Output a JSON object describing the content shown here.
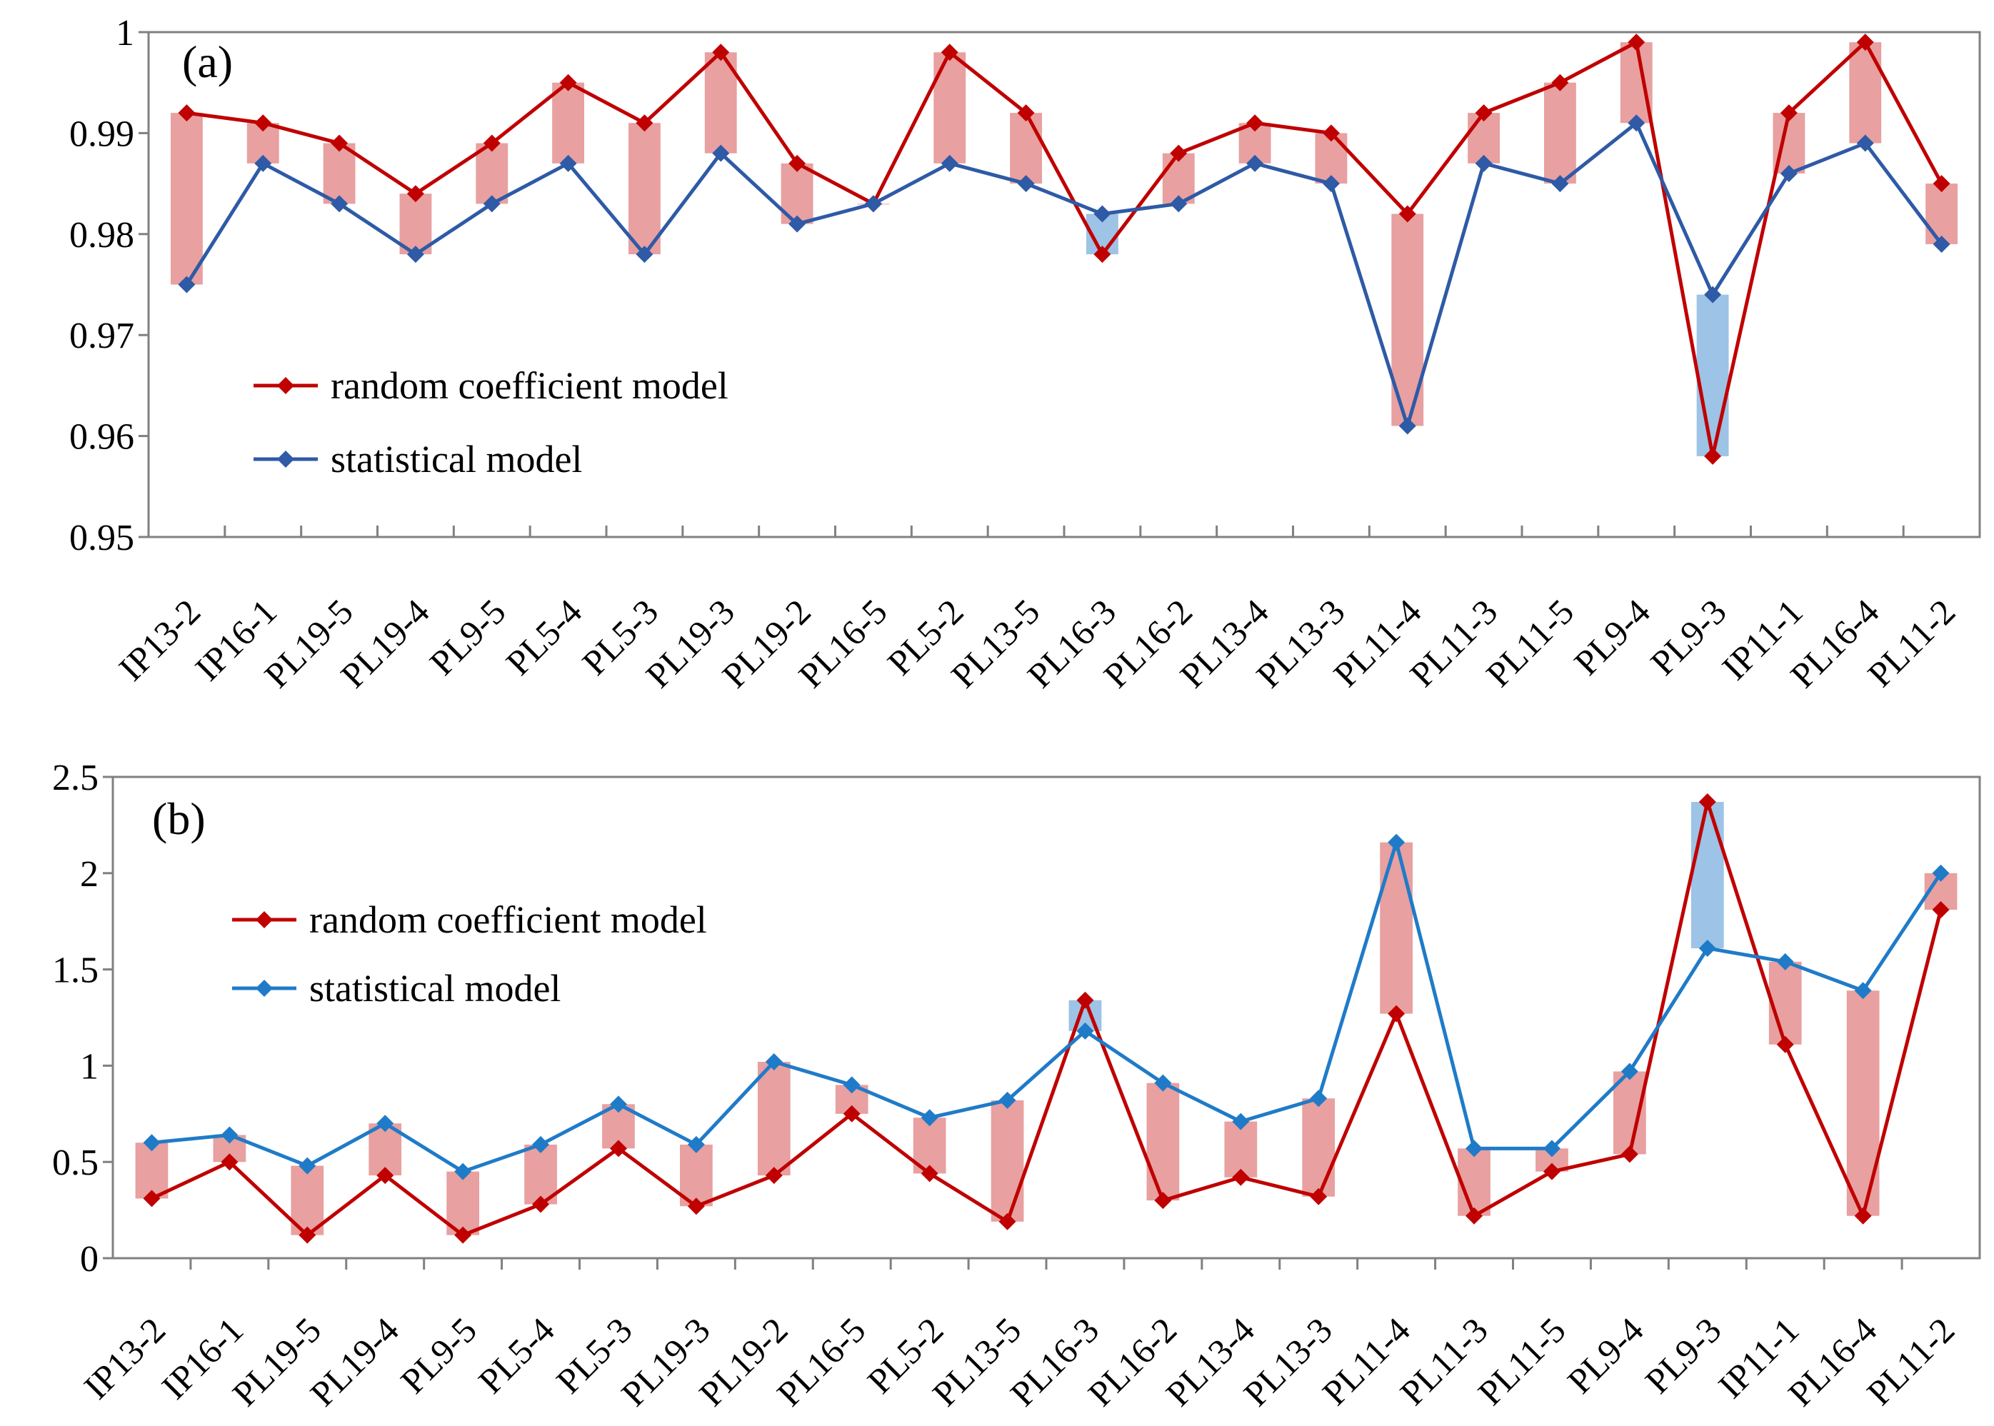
{
  "chart_data": [
    {
      "type": "line",
      "panel_label": "(a)",
      "categories": [
        "IP13-2",
        "IP16-1",
        "PL19-5",
        "PL19-4",
        "PL9-5",
        "PL5-4",
        "PL5-3",
        "PL19-3",
        "PL19-2",
        "PL16-5",
        "PL5-2",
        "PL13-5",
        "PL16-3",
        "PL16-2",
        "PL13-4",
        "PL13-3",
        "PL11-4",
        "PL11-3",
        "PL11-5",
        "PL9-4",
        "PL9-3",
        "IP11-1",
        "PL16-4",
        "PL11-2"
      ],
      "series": [
        {
          "name": "random coefficient model",
          "color": "#C00000",
          "values": [
            0.992,
            0.991,
            0.989,
            0.984,
            0.989,
            0.995,
            0.991,
            0.998,
            0.987,
            0.983,
            0.998,
            0.992,
            0.978,
            0.988,
            0.991,
            0.99,
            0.982,
            0.992,
            0.995,
            0.999,
            0.958,
            0.992,
            0.999,
            0.985
          ]
        },
        {
          "name": "statistical model",
          "color": "#2E5AA6",
          "values": [
            0.975,
            0.987,
            0.983,
            0.978,
            0.983,
            0.987,
            0.978,
            0.988,
            0.981,
            0.983,
            0.987,
            0.985,
            0.982,
            0.983,
            0.987,
            0.985,
            0.961,
            0.987,
            0.985,
            0.991,
            0.974,
            0.986,
            0.989,
            0.979
          ]
        }
      ],
      "diff_bar_colors": {
        "random_higher": "#E8A0A0",
        "statistical_higher": "#9DC3E6"
      },
      "ylim": [
        0.95,
        1.0
      ],
      "yticks": [
        "0.95",
        "0.96",
        "0.97",
        "0.98",
        "0.99",
        "1"
      ],
      "ytick_values": [
        0.95,
        0.96,
        0.97,
        0.98,
        0.99,
        1.0
      ],
      "legend_position": "middle-left",
      "xlabel": "",
      "ylabel": "",
      "grid": false
    },
    {
      "type": "line",
      "panel_label": "(b)",
      "categories": [
        "IP13-2",
        "IP16-1",
        "PL19-5",
        "PL19-4",
        "PL9-5",
        "PL5-4",
        "PL5-3",
        "PL19-3",
        "PL19-2",
        "PL16-5",
        "PL5-2",
        "PL13-5",
        "PL16-3",
        "PL16-2",
        "PL13-4",
        "PL13-3",
        "PL11-4",
        "PL11-3",
        "PL11-5",
        "PL9-4",
        "PL9-3",
        "IP11-1",
        "PL16-4",
        "PL11-2"
      ],
      "series": [
        {
          "name": "random coefficient model",
          "color": "#C00000",
          "values": [
            0.31,
            0.5,
            0.12,
            0.43,
            0.12,
            0.28,
            0.57,
            0.27,
            0.43,
            0.75,
            0.44,
            0.19,
            1.34,
            0.3,
            0.42,
            0.32,
            1.27,
            0.22,
            0.45,
            0.54,
            2.37,
            1.11,
            0.22,
            1.81
          ]
        },
        {
          "name": "statistical model",
          "color": "#1F7BC8",
          "values": [
            0.6,
            0.64,
            0.48,
            0.7,
            0.45,
            0.59,
            0.8,
            0.59,
            1.02,
            0.9,
            0.73,
            0.82,
            1.18,
            0.91,
            0.71,
            0.83,
            2.16,
            0.57,
            0.57,
            0.97,
            1.61,
            1.54,
            1.39,
            2.0
          ]
        }
      ],
      "diff_bar_colors": {
        "random_higher": "#9DC3E6",
        "statistical_higher": "#E8A0A0"
      },
      "ylim": [
        0,
        2.5
      ],
      "yticks": [
        "0",
        "0.5",
        "1",
        "1.5",
        "2",
        "2.5"
      ],
      "ytick_values": [
        0,
        0.5,
        1,
        1.5,
        2,
        2.5
      ],
      "legend_position": "top-left",
      "xlabel": "",
      "ylabel": "",
      "grid": false
    }
  ]
}
